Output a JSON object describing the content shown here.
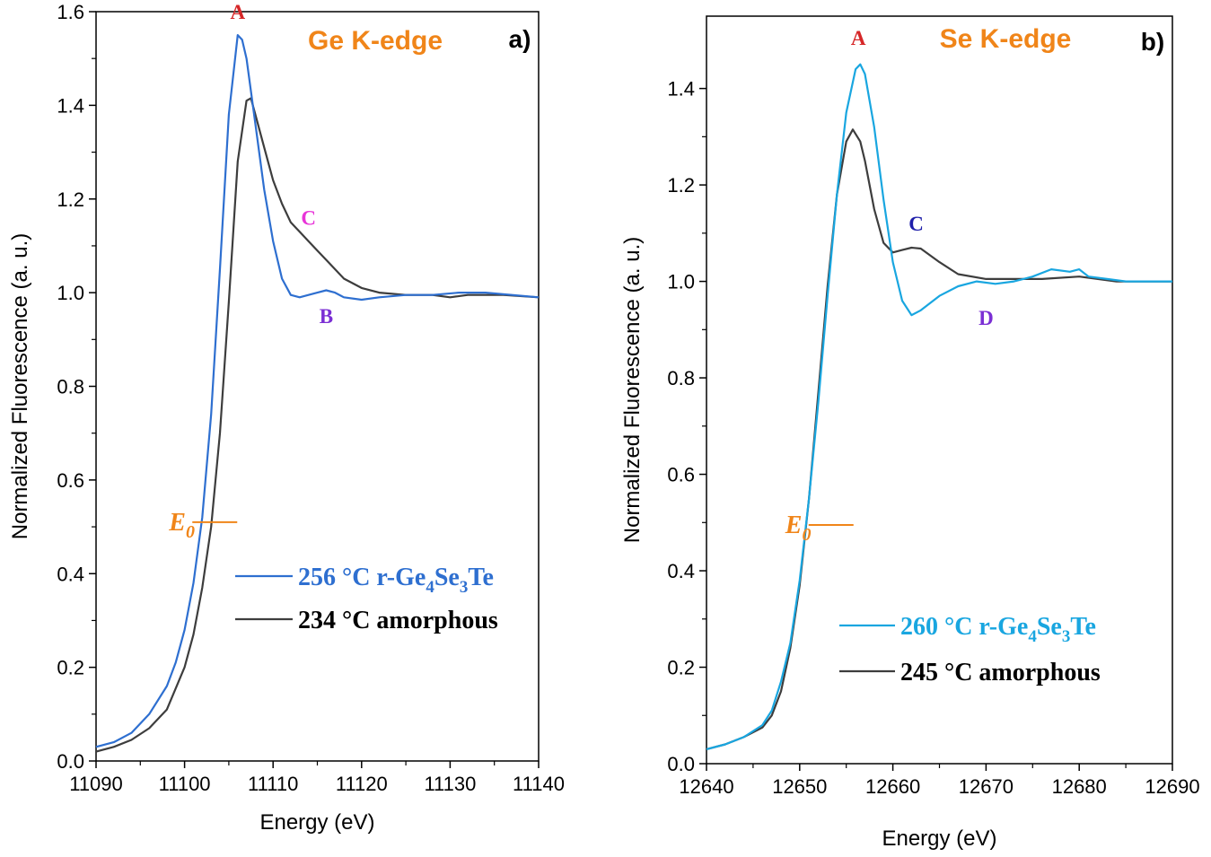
{
  "chart_data": [
    {
      "type": "line",
      "panel_letter": "a)",
      "title": "Ge K-edge",
      "title_color": "#F08519",
      "xlabel": "Energy (eV)",
      "ylabel": "Normalized Fluorescence  (a. u.)",
      "xlim": [
        11090,
        11140
      ],
      "ylim": [
        0.0,
        1.6
      ],
      "xticks": [
        11090,
        11100,
        11110,
        11120,
        11130,
        11140
      ],
      "xtick_labels": [
        "11090",
        "11100",
        "11110",
        "11120",
        "11130",
        "11140"
      ],
      "yticks": [
        0.0,
        0.2,
        0.4,
        0.6,
        0.8,
        1.0,
        1.2,
        1.4,
        1.6
      ],
      "ytick_labels": [
        "0.0",
        "0.2",
        "0.4",
        "0.6",
        "0.8",
        "1.0",
        "1.2",
        "1.4",
        "1.6"
      ],
      "grid": false,
      "legend_position": "lower-right",
      "series": [
        {
          "name": "256 °C r-Ge4Se3Te",
          "color": "#2E6FD0",
          "points": [
            [
              11090,
              0.03
            ],
            [
              11092,
              0.04
            ],
            [
              11094,
              0.06
            ],
            [
              11096,
              0.1
            ],
            [
              11098,
              0.16
            ],
            [
              11099,
              0.21
            ],
            [
              11100,
              0.28
            ],
            [
              11101,
              0.38
            ],
            [
              11102,
              0.52
            ],
            [
              11103,
              0.74
            ],
            [
              11104,
              1.05
            ],
            [
              11105,
              1.38
            ],
            [
              11106,
              1.55
            ],
            [
              11106.5,
              1.54
            ],
            [
              11107,
              1.5
            ],
            [
              11108,
              1.36
            ],
            [
              11109,
              1.22
            ],
            [
              11110,
              1.11
            ],
            [
              11111,
              1.03
            ],
            [
              11112,
              0.995
            ],
            [
              11113,
              0.99
            ],
            [
              11114,
              0.995
            ],
            [
              11115,
              1.0
            ],
            [
              11116,
              1.005
            ],
            [
              11117,
              1.0
            ],
            [
              11118,
              0.99
            ],
            [
              11120,
              0.985
            ],
            [
              11122,
              0.99
            ],
            [
              11125,
              0.995
            ],
            [
              11128,
              0.995
            ],
            [
              11131,
              1.0
            ],
            [
              11134,
              1.0
            ],
            [
              11137,
              0.995
            ],
            [
              11140,
              0.99
            ]
          ]
        },
        {
          "name": "234 °C amorphous",
          "color": "#3D3D3D",
          "points": [
            [
              11090,
              0.02
            ],
            [
              11092,
              0.03
            ],
            [
              11094,
              0.045
            ],
            [
              11096,
              0.07
            ],
            [
              11098,
              0.11
            ],
            [
              11100,
              0.2
            ],
            [
              11101,
              0.27
            ],
            [
              11102,
              0.37
            ],
            [
              11103,
              0.5
            ],
            [
              11104,
              0.7
            ],
            [
              11105,
              0.98
            ],
            [
              11106,
              1.28
            ],
            [
              11107,
              1.41
            ],
            [
              11107.5,
              1.415
            ],
            [
              11108,
              1.38
            ],
            [
              11109,
              1.31
            ],
            [
              11110,
              1.24
            ],
            [
              11111,
              1.19
            ],
            [
              11112,
              1.15
            ],
            [
              11113,
              1.13
            ],
            [
              11114,
              1.11
            ],
            [
              11115,
              1.09
            ],
            [
              11116,
              1.07
            ],
            [
              11117,
              1.05
            ],
            [
              11118,
              1.03
            ],
            [
              11120,
              1.01
            ],
            [
              11122,
              1.0
            ],
            [
              11125,
              0.995
            ],
            [
              11128,
              0.995
            ],
            [
              11130,
              0.99
            ],
            [
              11132,
              0.995
            ],
            [
              11136,
              0.995
            ],
            [
              11140,
              0.99
            ]
          ]
        }
      ],
      "annotations": [
        {
          "label": "A",
          "x": 11106,
          "y": 1.585,
          "color": "#D62728"
        },
        {
          "label": "C",
          "x": 11114,
          "y": 1.145,
          "color": "#E834D8"
        },
        {
          "label": "B",
          "x": 11116,
          "y": 0.935,
          "color": "#7B2FD4"
        }
      ],
      "e0": {
        "label": "E",
        "subscript": "0",
        "x": 11102.5,
        "y": 0.51,
        "color": "#F08519"
      },
      "legend": [
        {
          "prefix": "256 °C r-Ge",
          "sub1": "4",
          "mid": "Se",
          "sub2": "3",
          "suffix": "Te",
          "color": "#2E6FD0"
        },
        {
          "text": "234 °C amorphous",
          "color": "#000000"
        }
      ]
    },
    {
      "type": "line",
      "panel_letter": "b)",
      "title": "Se K-edge",
      "title_color": "#F08519",
      "xlabel": "Energy (eV)",
      "ylabel": "Normalized Fluorescence  (a. u.)",
      "xlim": [
        12640,
        12690
      ],
      "ylim": [
        0.0,
        1.55
      ],
      "xticks": [
        12640,
        12650,
        12660,
        12670,
        12680,
        12690
      ],
      "xtick_labels": [
        "12640",
        "12650",
        "12660",
        "12670",
        "12680",
        "12690"
      ],
      "yticks": [
        0.0,
        0.2,
        0.4,
        0.6,
        0.8,
        1.0,
        1.2,
        1.4
      ],
      "ytick_labels": [
        "0.0",
        "0.2",
        "0.4",
        "0.6",
        "0.8",
        "1.0",
        "1.2",
        "1.4"
      ],
      "grid": false,
      "legend_position": "lower-right",
      "series": [
        {
          "name": "260 °C r-Ge4Se3Te",
          "color": "#19A6E0",
          "points": [
            [
              12640,
              0.03
            ],
            [
              12642,
              0.04
            ],
            [
              12644,
              0.055
            ],
            [
              12646,
              0.08
            ],
            [
              12647,
              0.11
            ],
            [
              12648,
              0.17
            ],
            [
              12649,
              0.25
            ],
            [
              12650,
              0.38
            ],
            [
              12651,
              0.55
            ],
            [
              12652,
              0.75
            ],
            [
              12653,
              0.97
            ],
            [
              12654,
              1.18
            ],
            [
              12655,
              1.35
            ],
            [
              12656,
              1.44
            ],
            [
              12656.5,
              1.45
            ],
            [
              12657,
              1.43
            ],
            [
              12658,
              1.32
            ],
            [
              12659,
              1.17
            ],
            [
              12660,
              1.04
            ],
            [
              12661,
              0.96
            ],
            [
              12662,
              0.93
            ],
            [
              12663,
              0.94
            ],
            [
              12665,
              0.97
            ],
            [
              12667,
              0.99
            ],
            [
              12669,
              1.0
            ],
            [
              12671,
              0.995
            ],
            [
              12673,
              1.0
            ],
            [
              12675,
              1.01
            ],
            [
              12677,
              1.025
            ],
            [
              12679,
              1.02
            ],
            [
              12680,
              1.025
            ],
            [
              12681,
              1.01
            ],
            [
              12683,
              1.005
            ],
            [
              12685,
              1.0
            ],
            [
              12688,
              1.0
            ],
            [
              12690,
              1.0
            ]
          ]
        },
        {
          "name": "245 °C amorphous",
          "color": "#3D3D3D",
          "points": [
            [
              12640,
              0.03
            ],
            [
              12642,
              0.04
            ],
            [
              12644,
              0.055
            ],
            [
              12646,
              0.075
            ],
            [
              12647,
              0.1
            ],
            [
              12648,
              0.15
            ],
            [
              12649,
              0.24
            ],
            [
              12650,
              0.37
            ],
            [
              12651,
              0.55
            ],
            [
              12652,
              0.77
            ],
            [
              12653,
              0.99
            ],
            [
              12654,
              1.18
            ],
            [
              12655,
              1.29
            ],
            [
              12655.7,
              1.315
            ],
            [
              12656.5,
              1.29
            ],
            [
              12657,
              1.25
            ],
            [
              12658,
              1.15
            ],
            [
              12659,
              1.08
            ],
            [
              12660,
              1.06
            ],
            [
              12661,
              1.065
            ],
            [
              12662,
              1.07
            ],
            [
              12663,
              1.068
            ],
            [
              12665,
              1.04
            ],
            [
              12667,
              1.015
            ],
            [
              12670,
              1.005
            ],
            [
              12673,
              1.005
            ],
            [
              12676,
              1.005
            ],
            [
              12680,
              1.01
            ],
            [
              12684,
              1.0
            ],
            [
              12687,
              1.0
            ],
            [
              12690,
              1.0
            ]
          ]
        }
      ],
      "annotations": [
        {
          "label": "A",
          "x": 12656.3,
          "y": 1.49,
          "color": "#D62728"
        },
        {
          "label": "C",
          "x": 12662.5,
          "y": 1.105,
          "color": "#1F1FAA"
        },
        {
          "label": "D",
          "x": 12670,
          "y": 0.91,
          "color": "#7B2FD4"
        }
      ],
      "e0": {
        "label": "E",
        "subscript": "0",
        "x": 12652.5,
        "y": 0.495,
        "color": "#F08519"
      },
      "legend": [
        {
          "prefix": "260 °C r-Ge",
          "sub1": "4",
          "mid": "Se",
          "sub2": "3",
          "suffix": "Te",
          "color": "#19A6E0"
        },
        {
          "text": "245 °C amorphous",
          "color": "#000000"
        }
      ]
    }
  ]
}
